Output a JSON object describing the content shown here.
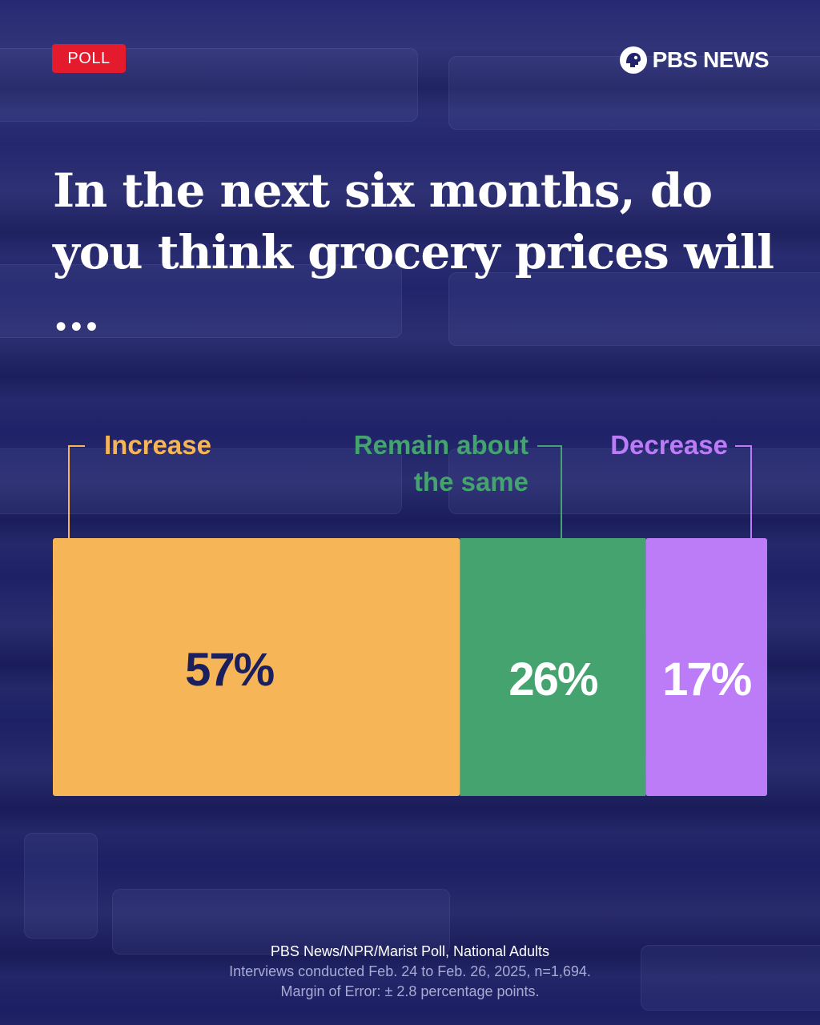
{
  "badge": "POLL",
  "brand": {
    "name": "PBS NEWS",
    "logo_icon": "pbs-head-logo"
  },
  "title": "In the next six months, do you think grocery prices will ...",
  "chart_data": {
    "type": "bar",
    "orientation": "horizontal-stacked-100",
    "categories": [
      "Increase",
      "Remain about the same",
      "Decrease"
    ],
    "label_lines": [
      [
        "Increase"
      ],
      [
        "Remain about",
        "the same"
      ],
      [
        "Decrease"
      ]
    ],
    "values": [
      57,
      26,
      17
    ],
    "value_labels": [
      "57%",
      "26%",
      "17%"
    ],
    "colors": [
      "#f6b657",
      "#45a36f",
      "#bd7cf7"
    ],
    "label_colors": [
      "#f6b657",
      "#45a36f",
      "#bd7cf7"
    ],
    "value_label_colors": [
      "#1c1f5e",
      "#ffffff",
      "#ffffff"
    ],
    "total": 100
  },
  "source": {
    "line1": "PBS News/NPR/Marist Poll, National Adults",
    "line2": "Interviews conducted Feb. 24 to Feb. 26, 2025, n=1,694.",
    "line3": "Margin of Error: ± 2.8 percentage points."
  }
}
